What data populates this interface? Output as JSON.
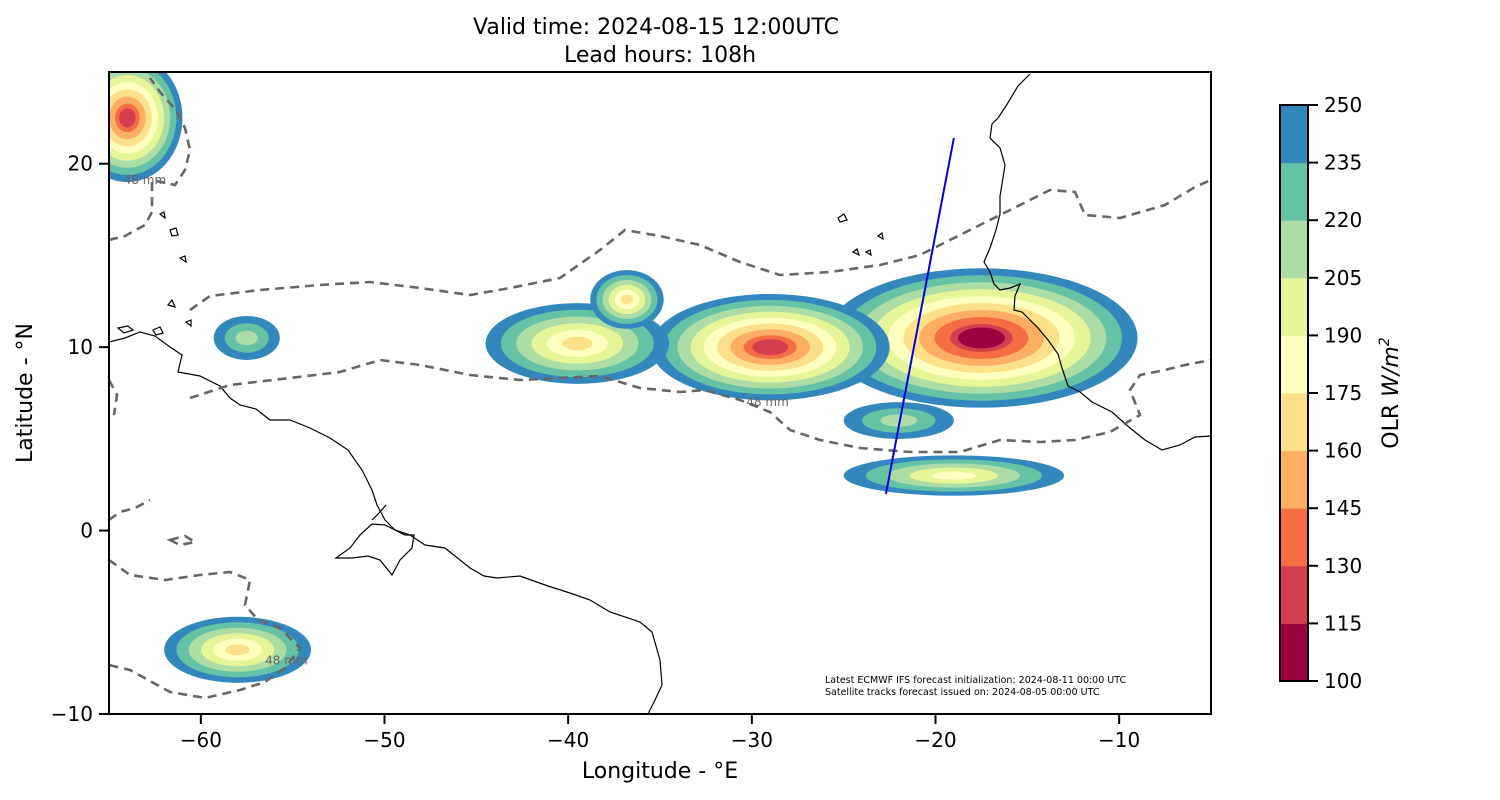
{
  "title": {
    "line1": "Valid time: 2024-08-15 12:00UTC",
    "line2": "Lead hours: 108h"
  },
  "axes": {
    "xlabel": "Longitude - °E",
    "ylabel": "Latitude - °N",
    "xlim": [
      -65,
      -5
    ],
    "ylim": [
      -10,
      25
    ],
    "xticks": [
      {
        "value": -60,
        "label": "−60"
      },
      {
        "value": -50,
        "label": "−50"
      },
      {
        "value": -40,
        "label": "−40"
      },
      {
        "value": -30,
        "label": "−30"
      },
      {
        "value": -20,
        "label": "−20"
      },
      {
        "value": -10,
        "label": "−10"
      }
    ],
    "yticks": [
      {
        "value": -10,
        "label": "−10"
      },
      {
        "value": 0,
        "label": "0"
      },
      {
        "value": 10,
        "label": "10"
      },
      {
        "value": 20,
        "label": "20"
      }
    ]
  },
  "colorbar": {
    "label": "OLR W/m²",
    "label_main": "OLR ",
    "label_unit": "W/m",
    "label_sup": "2",
    "levels": [
      100,
      115,
      130,
      145,
      160,
      175,
      190,
      205,
      220,
      235,
      250
    ],
    "tick_labels": [
      "100",
      "115",
      "130",
      "145",
      "160",
      "175",
      "190",
      "205",
      "220",
      "235",
      "250"
    ],
    "colors": [
      "#9e0142",
      "#d53e4f",
      "#f46d43",
      "#fdae61",
      "#fee08b",
      "#ffffbf",
      "#e6f598",
      "#abdda4",
      "#66c2a5",
      "#3288bd",
      "#5e4fa2",
      "#ffffff"
    ]
  },
  "contour_labels": [
    {
      "text": "48 mm",
      "lon": -64.2,
      "lat": 18.9
    },
    {
      "text": "48 mm",
      "lon": -30.3,
      "lat": 6.8
    },
    {
      "text": "48 mm",
      "lon": -56.5,
      "lat": -7.3
    }
  ],
  "footnote": {
    "line1": "Latest ECMWF IFS forecast initialization: 2024-08-11 00:00 UTC",
    "line2": "Satellite tracks forecast issued on: 2024-08-05 00:00 UTC"
  },
  "satellite_track": {
    "start": {
      "lon": -22.7,
      "lat": 2.0
    },
    "end": {
      "lon": -19.0,
      "lat": 21.4
    },
    "color": "#0000dd"
  },
  "olr_systems": [
    {
      "lon": -17.5,
      "lat": 10.5,
      "rx": 8.5,
      "ry": 3.8,
      "min": 102
    },
    {
      "lon": -29.0,
      "lat": 10.0,
      "rx": 6.5,
      "ry": 2.9,
      "min": 118
    },
    {
      "lon": -39.5,
      "lat": 10.2,
      "rx": 5.0,
      "ry": 2.2,
      "min": 162
    },
    {
      "lon": -36.8,
      "lat": 12.6,
      "rx": 2.0,
      "ry": 1.6,
      "min": 172
    },
    {
      "lon": -64.0,
      "lat": 22.5,
      "rx": 3.0,
      "ry": 3.5,
      "min": 120
    },
    {
      "lon": -58.0,
      "lat": -6.5,
      "rx": 4.0,
      "ry": 1.8,
      "min": 165
    },
    {
      "lon": -57.5,
      "lat": 10.5,
      "rx": 1.8,
      "ry": 1.2,
      "min": 205
    },
    {
      "lon": -19.0,
      "lat": 3.0,
      "rx": 6.0,
      "ry": 1.1,
      "min": 175
    },
    {
      "lon": -22.0,
      "lat": 6.0,
      "rx": 3.0,
      "ry": 1.0,
      "min": 210
    }
  ]
}
